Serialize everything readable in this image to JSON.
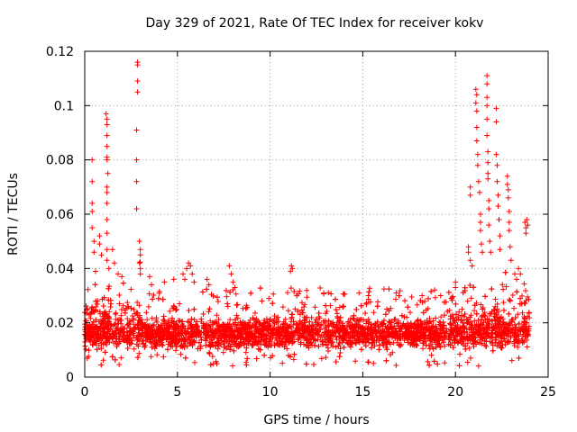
{
  "chart_data": {
    "type": "scatter",
    "title": "Day 329 of 2021, Rate Of TEC Index for receiver kokv",
    "xlabel": "GPS time / hours",
    "ylabel": "ROTI / TECUs",
    "xlim": [
      0,
      25
    ],
    "ylim": [
      0,
      0.12
    ],
    "xticks": [
      0,
      5,
      10,
      15,
      20,
      25
    ],
    "xtick_labels": [
      "0",
      "5",
      "10",
      "15",
      "20",
      "25"
    ],
    "yticks": [
      0,
      0.02,
      0.04,
      0.06,
      0.08,
      0.1,
      0.12
    ],
    "ytick_labels": [
      "0",
      "0.02",
      "0.04",
      "0.06",
      "0.08",
      "0.1",
      "0.12"
    ],
    "grid": true,
    "marker": "+",
    "marker_color": "#ff0000",
    "series": [
      {
        "name": "ROTI",
        "baseline_band": {
          "x_range": [
            0,
            24
          ],
          "y_range": [
            0.004,
            0.033
          ]
        },
        "points": [
          [
            0.4,
            0.08
          ],
          [
            0.4,
            0.072
          ],
          [
            0.4,
            0.064
          ],
          [
            0.4,
            0.061
          ],
          [
            0.4,
            0.055
          ],
          [
            0.5,
            0.05
          ],
          [
            0.5,
            0.046
          ],
          [
            0.8,
            0.052
          ],
          [
            0.8,
            0.049
          ],
          [
            0.9,
            0.045
          ],
          [
            1.15,
            0.097
          ],
          [
            1.2,
            0.095
          ],
          [
            1.2,
            0.093
          ],
          [
            1.2,
            0.089
          ],
          [
            1.2,
            0.085
          ],
          [
            1.2,
            0.081
          ],
          [
            1.2,
            0.08
          ],
          [
            1.25,
            0.075
          ],
          [
            1.2,
            0.07
          ],
          [
            1.2,
            0.068
          ],
          [
            1.2,
            0.064
          ],
          [
            1.2,
            0.058
          ],
          [
            1.2,
            0.053
          ],
          [
            1.2,
            0.047
          ],
          [
            1.2,
            0.043
          ],
          [
            1.3,
            0.04
          ],
          [
            1.5,
            0.047
          ],
          [
            1.6,
            0.042
          ],
          [
            1.8,
            0.038
          ],
          [
            2.0,
            0.037
          ],
          [
            2.85,
            0.116
          ],
          [
            2.85,
            0.115
          ],
          [
            2.85,
            0.109
          ],
          [
            2.85,
            0.105
          ],
          [
            2.8,
            0.091
          ],
          [
            2.8,
            0.08
          ],
          [
            2.8,
            0.072
          ],
          [
            2.8,
            0.062
          ],
          [
            2.95,
            0.05
          ],
          [
            3.0,
            0.047
          ],
          [
            3.0,
            0.045
          ],
          [
            2.95,
            0.042
          ],
          [
            3.0,
            0.04
          ],
          [
            3.0,
            0.038
          ],
          [
            3.5,
            0.037
          ],
          [
            3.6,
            0.034
          ],
          [
            4.3,
            0.035
          ],
          [
            4.8,
            0.036
          ],
          [
            5.3,
            0.038
          ],
          [
            5.4,
            0.036
          ],
          [
            5.5,
            0.04
          ],
          [
            5.6,
            0.042
          ],
          [
            5.7,
            0.041
          ],
          [
            5.8,
            0.038
          ],
          [
            5.9,
            0.035
          ],
          [
            6.6,
            0.036
          ],
          [
            6.7,
            0.034
          ],
          [
            7.8,
            0.041
          ],
          [
            7.9,
            0.038
          ],
          [
            8.0,
            0.035
          ],
          [
            8.1,
            0.033
          ],
          [
            11.15,
            0.041
          ],
          [
            11.2,
            0.04
          ],
          [
            11.1,
            0.039
          ],
          [
            14.8,
            0.031
          ],
          [
            15.3,
            0.03
          ],
          [
            16.8,
            0.031
          ],
          [
            18.2,
            0.03
          ],
          [
            19.2,
            0.03
          ],
          [
            20.0,
            0.035
          ],
          [
            20.0,
            0.033
          ],
          [
            20.8,
            0.07
          ],
          [
            20.8,
            0.067
          ],
          [
            20.7,
            0.048
          ],
          [
            20.7,
            0.046
          ],
          [
            20.8,
            0.043
          ],
          [
            20.9,
            0.041
          ],
          [
            21.1,
            0.106
          ],
          [
            21.15,
            0.104
          ],
          [
            21.1,
            0.101
          ],
          [
            21.15,
            0.098
          ],
          [
            21.15,
            0.092
          ],
          [
            21.15,
            0.087
          ],
          [
            21.2,
            0.082
          ],
          [
            21.2,
            0.078
          ],
          [
            21.25,
            0.072
          ],
          [
            21.3,
            0.068
          ],
          [
            21.35,
            0.06
          ],
          [
            21.35,
            0.057
          ],
          [
            21.35,
            0.054
          ],
          [
            21.4,
            0.049
          ],
          [
            21.45,
            0.046
          ],
          [
            21.7,
            0.111
          ],
          [
            21.7,
            0.108
          ],
          [
            21.7,
            0.103
          ],
          [
            21.7,
            0.1
          ],
          [
            21.7,
            0.095
          ],
          [
            21.7,
            0.089
          ],
          [
            21.75,
            0.083
          ],
          [
            21.75,
            0.079
          ],
          [
            21.75,
            0.075
          ],
          [
            21.75,
            0.073
          ],
          [
            21.8,
            0.065
          ],
          [
            21.8,
            0.062
          ],
          [
            21.8,
            0.056
          ],
          [
            21.85,
            0.05
          ],
          [
            21.9,
            0.046
          ],
          [
            22.2,
            0.099
          ],
          [
            22.2,
            0.094
          ],
          [
            22.2,
            0.082
          ],
          [
            22.25,
            0.078
          ],
          [
            22.25,
            0.072
          ],
          [
            22.3,
            0.067
          ],
          [
            22.3,
            0.063
          ],
          [
            22.35,
            0.058
          ],
          [
            22.4,
            0.052
          ],
          [
            22.4,
            0.047
          ],
          [
            22.8,
            0.074
          ],
          [
            22.8,
            0.071
          ],
          [
            22.85,
            0.069
          ],
          [
            22.85,
            0.066
          ],
          [
            22.9,
            0.061
          ],
          [
            22.9,
            0.057
          ],
          [
            22.9,
            0.054
          ],
          [
            22.95,
            0.048
          ],
          [
            23.0,
            0.043
          ],
          [
            23.2,
            0.038
          ],
          [
            23.3,
            0.036
          ],
          [
            23.4,
            0.04
          ],
          [
            23.5,
            0.038
          ],
          [
            23.75,
            0.057
          ],
          [
            23.8,
            0.055
          ],
          [
            23.85,
            0.058
          ],
          [
            23.9,
            0.056
          ],
          [
            23.8,
            0.053
          ]
        ]
      }
    ]
  }
}
